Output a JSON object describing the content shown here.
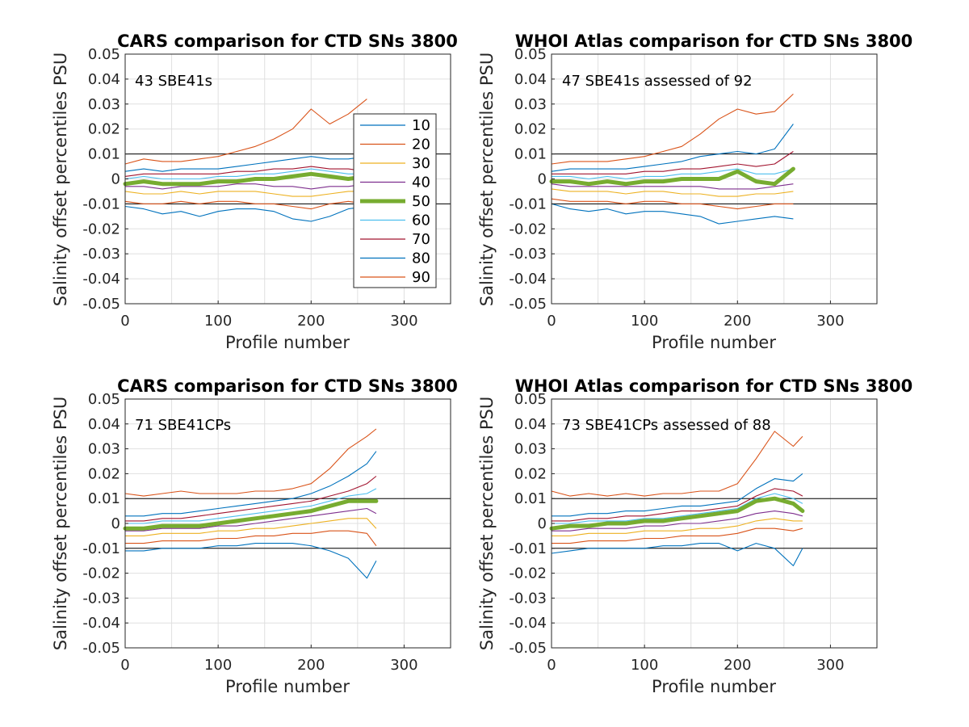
{
  "colors": {
    "p10": "#0072bd",
    "p20": "#d95319",
    "p30": "#edb120",
    "p40": "#7e2f8e",
    "p50": "#77ac30",
    "p60": "#4dbeee",
    "p70": "#a2142f",
    "p80": "#0072bd",
    "p90": "#d95319",
    "refline": "#000000",
    "grid": "#e0e0e0"
  },
  "legend": {
    "entries": [
      "10",
      "20",
      "30",
      "40",
      "50",
      "60",
      "70",
      "80",
      "90"
    ]
  },
  "chart_data": [
    {
      "type": "line",
      "title": "CARS comparison for CTD SNs 3800",
      "annotation": "43 SBE41s",
      "xlabel": "Profile number",
      "ylabel": "Salinity offset percentiles PSU",
      "xlim": [
        0,
        350
      ],
      "ylim": [
        -0.05,
        0.05
      ],
      "xticks": [
        "0",
        "100",
        "200",
        "300"
      ],
      "yticks": [
        "-0.05",
        "-0.04",
        "-0.03",
        "-0.02",
        "-0.01",
        "0",
        "0.01",
        "0.02",
        "0.03",
        "0.04",
        "0.05"
      ],
      "grid": true,
      "legend_position": "inside-right",
      "reference_lines": [
        0.01,
        -0.01
      ],
      "x": [
        0,
        20,
        40,
        60,
        80,
        100,
        120,
        140,
        160,
        180,
        200,
        220,
        240,
        260
      ],
      "series": [
        {
          "name": "10",
          "values": [
            -0.011,
            -0.012,
            -0.014,
            -0.013,
            -0.015,
            -0.013,
            -0.012,
            -0.012,
            -0.013,
            -0.016,
            -0.017,
            -0.015,
            -0.012,
            -0.011
          ]
        },
        {
          "name": "20",
          "values": [
            -0.009,
            -0.01,
            -0.01,
            -0.009,
            -0.01,
            -0.009,
            -0.009,
            -0.01,
            -0.01,
            -0.011,
            -0.012,
            -0.01,
            -0.009,
            -0.01
          ]
        },
        {
          "name": "30",
          "values": [
            -0.005,
            -0.006,
            -0.006,
            -0.005,
            -0.006,
            -0.005,
            -0.005,
            -0.005,
            -0.006,
            -0.007,
            -0.007,
            -0.006,
            -0.005,
            -0.005
          ]
        },
        {
          "name": "40",
          "values": [
            -0.003,
            -0.003,
            -0.004,
            -0.003,
            -0.003,
            -0.003,
            -0.002,
            -0.002,
            -0.003,
            -0.003,
            -0.004,
            -0.003,
            -0.003,
            -0.002
          ]
        },
        {
          "name": "50",
          "values": [
            -0.002,
            -0.001,
            -0.002,
            -0.002,
            -0.002,
            -0.001,
            -0.001,
            0.0,
            0.0,
            0.001,
            0.002,
            0.001,
            0.0,
            0.001
          ]
        },
        {
          "name": "60",
          "values": [
            0.0,
            0.001,
            0.0,
            0.0,
            0.0,
            0.001,
            0.001,
            0.002,
            0.002,
            0.003,
            0.004,
            0.003,
            0.002,
            0.002
          ]
        },
        {
          "name": "70",
          "values": [
            0.001,
            0.002,
            0.002,
            0.002,
            0.002,
            0.002,
            0.003,
            0.003,
            0.004,
            0.004,
            0.005,
            0.004,
            0.004,
            0.003
          ]
        },
        {
          "name": "80",
          "values": [
            0.003,
            0.004,
            0.003,
            0.004,
            0.004,
            0.004,
            0.005,
            0.006,
            0.007,
            0.008,
            0.009,
            0.008,
            0.008,
            0.009
          ]
        },
        {
          "name": "90",
          "values": [
            0.006,
            0.008,
            0.007,
            0.007,
            0.008,
            0.009,
            0.011,
            0.013,
            0.016,
            0.02,
            0.028,
            0.022,
            0.026,
            0.032
          ]
        }
      ]
    },
    {
      "type": "line",
      "title": "WHOI Atlas comparison for CTD SNs 3800",
      "annotation": "47 SBE41s assessed of 92",
      "xlabel": "Profile number",
      "ylabel": "Salinity offset percentiles PSU",
      "xlim": [
        0,
        350
      ],
      "ylim": [
        -0.05,
        0.05
      ],
      "xticks": [
        "0",
        "100",
        "200",
        "300"
      ],
      "yticks": [
        "-0.05",
        "-0.04",
        "-0.03",
        "-0.02",
        "-0.01",
        "0",
        "0.01",
        "0.02",
        "0.03",
        "0.04",
        "0.05"
      ],
      "grid": true,
      "reference_lines": [
        0.01,
        -0.01
      ],
      "x": [
        0,
        20,
        40,
        60,
        80,
        100,
        120,
        140,
        160,
        180,
        200,
        220,
        240,
        260
      ],
      "series": [
        {
          "name": "10",
          "values": [
            -0.01,
            -0.012,
            -0.013,
            -0.012,
            -0.014,
            -0.013,
            -0.013,
            -0.014,
            -0.015,
            -0.018,
            -0.017,
            -0.016,
            -0.015,
            -0.016
          ]
        },
        {
          "name": "20",
          "values": [
            -0.008,
            -0.009,
            -0.009,
            -0.009,
            -0.01,
            -0.009,
            -0.009,
            -0.01,
            -0.01,
            -0.011,
            -0.012,
            -0.011,
            -0.01,
            -0.01
          ]
        },
        {
          "name": "30",
          "values": [
            -0.004,
            -0.005,
            -0.005,
            -0.005,
            -0.006,
            -0.005,
            -0.005,
            -0.006,
            -0.006,
            -0.007,
            -0.007,
            -0.006,
            -0.006,
            -0.005
          ]
        },
        {
          "name": "40",
          "values": [
            -0.002,
            -0.003,
            -0.003,
            -0.003,
            -0.003,
            -0.003,
            -0.003,
            -0.003,
            -0.003,
            -0.004,
            -0.004,
            -0.004,
            -0.003,
            -0.002
          ]
        },
        {
          "name": "50",
          "values": [
            -0.001,
            -0.001,
            -0.002,
            -0.001,
            -0.002,
            -0.001,
            -0.001,
            0.0,
            0.0,
            0.0,
            0.003,
            -0.001,
            -0.002,
            0.004
          ]
        },
        {
          "name": "60",
          "values": [
            0.001,
            0.001,
            0.0,
            0.001,
            0.0,
            0.001,
            0.001,
            0.002,
            0.002,
            0.003,
            0.004,
            0.002,
            0.002,
            0.004
          ]
        },
        {
          "name": "70",
          "values": [
            0.002,
            0.002,
            0.002,
            0.002,
            0.002,
            0.003,
            0.003,
            0.004,
            0.004,
            0.005,
            0.006,
            0.005,
            0.006,
            0.011
          ]
        },
        {
          "name": "80",
          "values": [
            0.003,
            0.004,
            0.004,
            0.004,
            0.004,
            0.005,
            0.006,
            0.007,
            0.009,
            0.01,
            0.011,
            0.01,
            0.012,
            0.022
          ]
        },
        {
          "name": "90",
          "values": [
            0.006,
            0.007,
            0.007,
            0.007,
            0.008,
            0.009,
            0.011,
            0.013,
            0.018,
            0.024,
            0.028,
            0.026,
            0.027,
            0.034
          ]
        }
      ]
    },
    {
      "type": "line",
      "title": "CARS comparison for CTD SNs 3800",
      "annotation": "71 SBE41CPs",
      "xlabel": "Profile number",
      "ylabel": "Salinity offset percentiles PSU",
      "xlim": [
        0,
        350
      ],
      "ylim": [
        -0.05,
        0.05
      ],
      "xticks": [
        "0",
        "100",
        "200",
        "300"
      ],
      "yticks": [
        "-0.05",
        "-0.04",
        "-0.03",
        "-0.02",
        "-0.01",
        "0",
        "0.01",
        "0.02",
        "0.03",
        "0.04",
        "0.05"
      ],
      "grid": true,
      "reference_lines": [
        0.01,
        -0.01
      ],
      "x": [
        0,
        20,
        40,
        60,
        80,
        100,
        120,
        140,
        160,
        180,
        200,
        220,
        240,
        260,
        270
      ],
      "series": [
        {
          "name": "10",
          "values": [
            -0.011,
            -0.011,
            -0.01,
            -0.01,
            -0.01,
            -0.009,
            -0.009,
            -0.008,
            -0.008,
            -0.008,
            -0.009,
            -0.011,
            -0.014,
            -0.022,
            -0.015
          ]
        },
        {
          "name": "20",
          "values": [
            -0.008,
            -0.008,
            -0.007,
            -0.007,
            -0.007,
            -0.006,
            -0.006,
            -0.005,
            -0.005,
            -0.004,
            -0.004,
            -0.003,
            -0.003,
            -0.004,
            -0.009
          ]
        },
        {
          "name": "30",
          "values": [
            -0.005,
            -0.005,
            -0.004,
            -0.004,
            -0.004,
            -0.003,
            -0.003,
            -0.002,
            -0.002,
            -0.001,
            0.0,
            0.001,
            0.002,
            0.002,
            -0.002
          ]
        },
        {
          "name": "40",
          "values": [
            -0.003,
            -0.003,
            -0.002,
            -0.002,
            -0.002,
            -0.001,
            -0.001,
            0.0,
            0.001,
            0.002,
            0.003,
            0.004,
            0.005,
            0.006,
            0.004
          ]
        },
        {
          "name": "50",
          "values": [
            -0.002,
            -0.002,
            -0.001,
            -0.001,
            -0.001,
            0.0,
            0.001,
            0.002,
            0.003,
            0.004,
            0.005,
            0.007,
            0.009,
            0.009,
            0.009
          ]
        },
        {
          "name": "60",
          "values": [
            0.0,
            0.0,
            0.001,
            0.001,
            0.001,
            0.002,
            0.003,
            0.004,
            0.005,
            0.006,
            0.007,
            0.009,
            0.011,
            0.012,
            0.014
          ]
        },
        {
          "name": "70",
          "values": [
            0.001,
            0.001,
            0.002,
            0.002,
            0.003,
            0.004,
            0.005,
            0.006,
            0.007,
            0.008,
            0.009,
            0.011,
            0.013,
            0.016,
            0.019
          ]
        },
        {
          "name": "80",
          "values": [
            0.003,
            0.003,
            0.004,
            0.004,
            0.005,
            0.006,
            0.007,
            0.008,
            0.009,
            0.01,
            0.012,
            0.015,
            0.019,
            0.024,
            0.029
          ]
        },
        {
          "name": "90",
          "values": [
            0.012,
            0.011,
            0.012,
            0.013,
            0.012,
            0.012,
            0.012,
            0.013,
            0.013,
            0.014,
            0.016,
            0.022,
            0.03,
            0.035,
            0.038
          ]
        }
      ]
    },
    {
      "type": "line",
      "title": "WHOI Atlas comparison for CTD SNs 3800",
      "annotation": "73 SBE41CPs assessed of 88",
      "xlabel": "Profile number",
      "ylabel": "Salinity offset percentiles PSU",
      "xlim": [
        0,
        350
      ],
      "ylim": [
        -0.05,
        0.05
      ],
      "xticks": [
        "0",
        "100",
        "200",
        "300"
      ],
      "yticks": [
        "-0.05",
        "-0.04",
        "-0.03",
        "-0.02",
        "-0.01",
        "0",
        "0.01",
        "0.02",
        "0.03",
        "0.04",
        "0.05"
      ],
      "grid": true,
      "reference_lines": [
        0.01,
        -0.01
      ],
      "x": [
        0,
        20,
        40,
        60,
        80,
        100,
        120,
        140,
        160,
        180,
        200,
        220,
        240,
        260,
        270
      ],
      "series": [
        {
          "name": "10",
          "values": [
            -0.012,
            -0.011,
            -0.01,
            -0.01,
            -0.01,
            -0.01,
            -0.009,
            -0.009,
            -0.008,
            -0.008,
            -0.011,
            -0.008,
            -0.01,
            -0.017,
            -0.01
          ]
        },
        {
          "name": "20",
          "values": [
            -0.008,
            -0.008,
            -0.007,
            -0.007,
            -0.007,
            -0.006,
            -0.006,
            -0.005,
            -0.005,
            -0.005,
            -0.004,
            -0.002,
            -0.002,
            -0.003,
            -0.002
          ]
        },
        {
          "name": "30",
          "values": [
            -0.005,
            -0.005,
            -0.004,
            -0.004,
            -0.004,
            -0.003,
            -0.003,
            -0.003,
            -0.002,
            -0.002,
            -0.001,
            0.001,
            0.002,
            0.001,
            0.001
          ]
        },
        {
          "name": "40",
          "values": [
            -0.003,
            -0.003,
            -0.002,
            -0.002,
            -0.002,
            -0.001,
            -0.001,
            0.0,
            0.0,
            0.001,
            0.002,
            0.004,
            0.005,
            0.004,
            0.003
          ]
        },
        {
          "name": "50",
          "values": [
            -0.002,
            -0.001,
            -0.001,
            0.0,
            0.0,
            0.001,
            0.001,
            0.002,
            0.003,
            0.004,
            0.005,
            0.009,
            0.01,
            0.008,
            0.005
          ]
        },
        {
          "name": "60",
          "values": [
            0.0,
            0.0,
            0.001,
            0.001,
            0.001,
            0.002,
            0.002,
            0.003,
            0.004,
            0.005,
            0.006,
            0.01,
            0.012,
            0.01,
            0.008
          ]
        },
        {
          "name": "70",
          "values": [
            0.001,
            0.001,
            0.002,
            0.002,
            0.003,
            0.003,
            0.004,
            0.005,
            0.005,
            0.006,
            0.007,
            0.011,
            0.014,
            0.013,
            0.011
          ]
        },
        {
          "name": "80",
          "values": [
            0.003,
            0.003,
            0.004,
            0.004,
            0.005,
            0.005,
            0.006,
            0.007,
            0.007,
            0.008,
            0.009,
            0.014,
            0.018,
            0.017,
            0.02
          ]
        },
        {
          "name": "90",
          "values": [
            0.013,
            0.011,
            0.012,
            0.011,
            0.012,
            0.011,
            0.012,
            0.012,
            0.013,
            0.013,
            0.016,
            0.026,
            0.037,
            0.031,
            0.035
          ]
        }
      ]
    }
  ]
}
